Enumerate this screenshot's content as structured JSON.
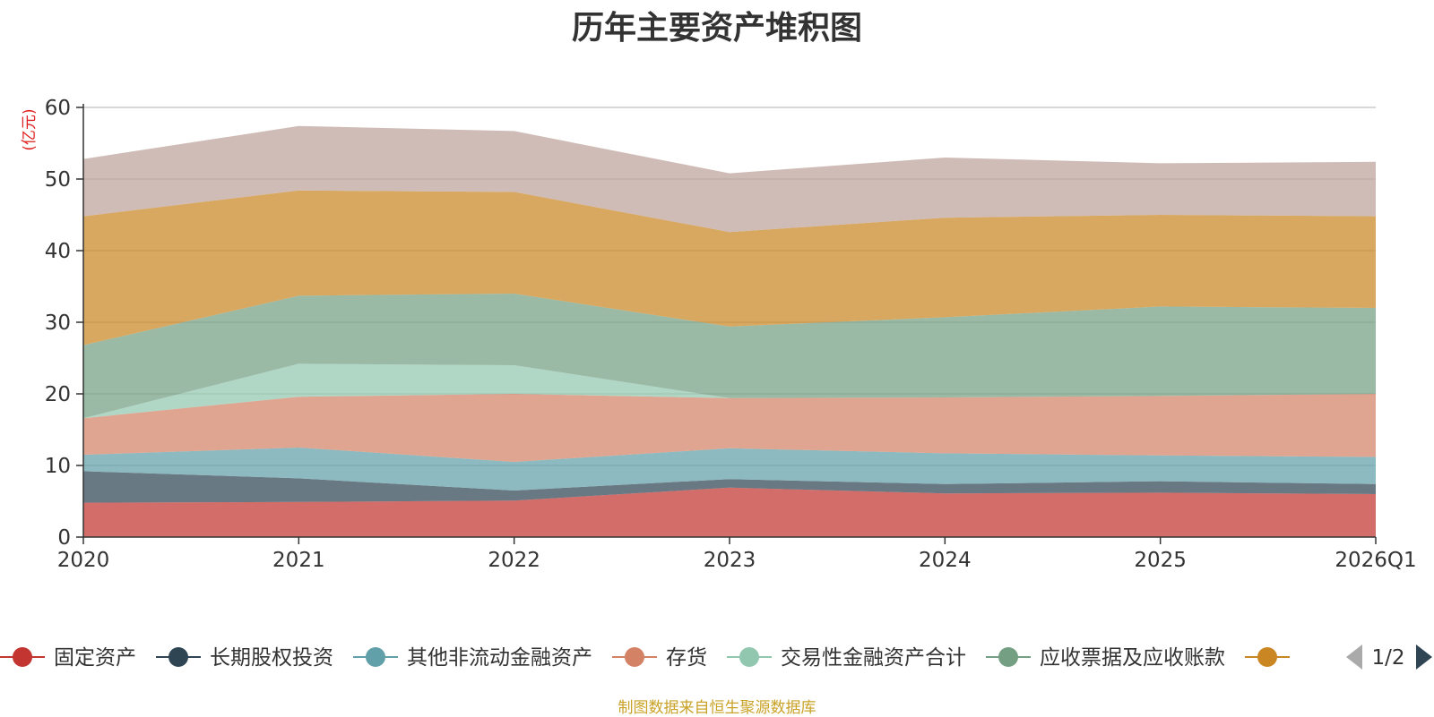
{
  "chart_data": {
    "type": "area",
    "stacked": true,
    "title": "历年主要资产堆积图",
    "ylabel": "(亿元)",
    "xlabel": "",
    "ylim": [
      0,
      60
    ],
    "yticks": [
      0,
      10,
      20,
      30,
      40,
      50,
      60
    ],
    "grid": true,
    "categories": [
      "2020",
      "2021",
      "2022",
      "2023",
      "2024",
      "2025",
      "2026Q1"
    ],
    "series": [
      {
        "name": "固定资产",
        "color": "#c23531",
        "values": [
          4.8,
          4.9,
          5.1,
          6.9,
          6.1,
          6.2,
          6.0
        ]
      },
      {
        "name": "长期股权投资",
        "color": "#2f4554",
        "values": [
          4.4,
          3.3,
          1.4,
          1.2,
          1.3,
          1.6,
          1.4
        ]
      },
      {
        "name": "其他非流动金融资产",
        "color": "#61a0a8",
        "values": [
          2.3,
          4.3,
          4.0,
          4.3,
          4.3,
          3.6,
          3.8
        ]
      },
      {
        "name": "存货",
        "color": "#d48265",
        "values": [
          5.1,
          7.1,
          9.5,
          7.0,
          7.8,
          8.3,
          8.8
        ]
      },
      {
        "name": "交易性金融资产合计",
        "color": "#91c7ae",
        "values": [
          0.0,
          4.6,
          4.0,
          0.0,
          0.0,
          0.0,
          0.0
        ]
      },
      {
        "name": "应收票据及应收账款",
        "color": "#749f83",
        "values": [
          10.2,
          9.5,
          10.0,
          10.0,
          11.2,
          12.5,
          12.0
        ]
      },
      {
        "name": "",
        "color": "#ca8622",
        "values": [
          18.0,
          14.7,
          14.2,
          13.2,
          13.9,
          12.8,
          12.8
        ]
      },
      {
        "name": "",
        "color": "#bda29a",
        "values": [
          8.0,
          9.0,
          8.5,
          8.2,
          8.4,
          7.2,
          7.6
        ]
      }
    ]
  },
  "legend": {
    "items": [
      {
        "label": "固定资产",
        "color": "#c23531"
      },
      {
        "label": "长期股权投资",
        "color": "#2f4554"
      },
      {
        "label": "其他非流动金融资产",
        "color": "#61a0a8"
      },
      {
        "label": "存货",
        "color": "#d48265"
      },
      {
        "label": "交易性金融资产合计",
        "color": "#91c7ae"
      },
      {
        "label": "应收票据及应收账款",
        "color": "#749f83"
      },
      {
        "label": "",
        "color": "#ca8622"
      }
    ],
    "page": "1/2",
    "prev_arrow_color": "#aaaaaa",
    "next_arrow_color": "#2f4554"
  },
  "footer": {
    "note": "制图数据来自恒生聚源数据库"
  }
}
